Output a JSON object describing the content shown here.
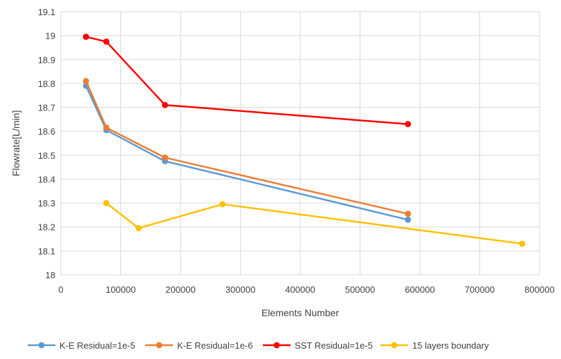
{
  "chart_data": {
    "type": "line",
    "title": "",
    "xlabel": "Elements Number",
    "ylabel": "Flowrate[L/min]",
    "xlim": [
      0,
      800000
    ],
    "ylim": [
      18,
      19.1
    ],
    "x_ticks": [
      0,
      100000,
      200000,
      300000,
      400000,
      500000,
      600000,
      700000,
      800000
    ],
    "x_tick_labels": [
      "0",
      "100000",
      "200000",
      "300000",
      "400000",
      "500000",
      "600000",
      "700000",
      "800000"
    ],
    "y_ticks": [
      18,
      18.1,
      18.2,
      18.3,
      18.4,
      18.5,
      18.6,
      18.7,
      18.8,
      18.9,
      19,
      19.1
    ],
    "y_tick_labels": [
      "18",
      "18.1",
      "18.2",
      "18.3",
      "18.4",
      "18.5",
      "18.6",
      "18.7",
      "18.8",
      "18.9",
      "19",
      "19.1"
    ],
    "grid": true,
    "legend_position": "bottom",
    "series": [
      {
        "name": "K-E Residual=1e-5",
        "color": "#5B9BD5",
        "x": [
          42000,
          76000,
          174000,
          580000
        ],
        "y": [
          18.79,
          18.605,
          18.475,
          18.23
        ]
      },
      {
        "name": "K-E Residual=1e-6",
        "color": "#ED7D31",
        "x": [
          42000,
          76000,
          174000,
          580000
        ],
        "y": [
          18.81,
          18.615,
          18.49,
          18.255
        ]
      },
      {
        "name": "SST Residual=1e-5",
        "color": "#FF0000",
        "x": [
          42000,
          76000,
          174000,
          580000
        ],
        "y": [
          18.995,
          18.975,
          18.71,
          18.63
        ]
      },
      {
        "name": "15 layers boundary",
        "color": "#FFC000",
        "x": [
          76000,
          130000,
          270000,
          771000
        ],
        "y": [
          18.3,
          18.195,
          18.295,
          18.13
        ]
      }
    ]
  }
}
